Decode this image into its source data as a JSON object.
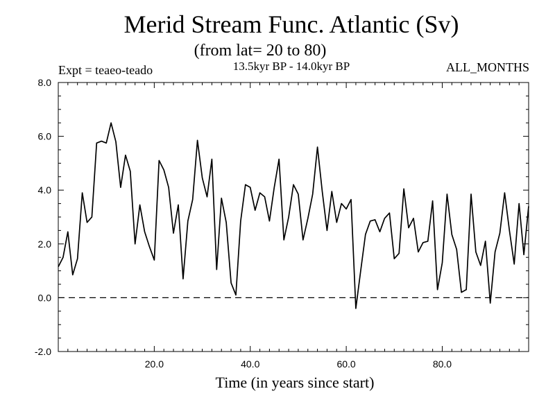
{
  "chart_data": {
    "type": "line",
    "title": "Merid Stream Func. Atlantic (Sv)",
    "subtitle": "(from lat= 20 to 80)",
    "annotations": {
      "left": "Expt = teaeo-teado",
      "center": "13.5kyr BP - 14.0kyr BP",
      "right": "ALL_MONTHS"
    },
    "xlabel": "Time (in years since start)",
    "ylabel": "",
    "xlim": [
      0,
      98
    ],
    "ylim": [
      -2.0,
      8.0
    ],
    "x_ticks": [
      20,
      40,
      60,
      80
    ],
    "x_tick_labels": [
      "20.0",
      "40.0",
      "60.0",
      "80.0"
    ],
    "y_ticks": [
      -2,
      0,
      2,
      4,
      6,
      8
    ],
    "y_tick_labels": [
      "-2.0",
      "0.0",
      "2.0",
      "4.0",
      "6.0",
      "8.0"
    ],
    "reference_line": {
      "y": 0.0,
      "style": "dashed"
    },
    "series": [
      {
        "name": "Merid Stream Func.",
        "x": [
          0,
          1,
          2,
          3,
          4,
          5,
          6,
          7,
          8,
          9,
          10,
          11,
          12,
          13,
          14,
          15,
          16,
          17,
          18,
          19,
          20,
          21,
          22,
          23,
          24,
          25,
          26,
          27,
          28,
          29,
          30,
          31,
          32,
          33,
          34,
          35,
          36,
          37,
          38,
          39,
          40,
          41,
          42,
          43,
          44,
          45,
          46,
          47,
          48,
          49,
          50,
          51,
          52,
          53,
          54,
          55,
          56,
          57,
          58,
          59,
          60,
          61,
          62,
          63,
          64,
          65,
          66,
          67,
          68,
          69,
          70,
          71,
          72,
          73,
          74,
          75,
          76,
          77,
          78,
          79,
          80,
          81,
          82,
          83,
          84,
          85,
          86,
          87,
          88,
          89,
          90,
          91,
          92,
          93,
          94,
          95,
          96,
          97,
          98
        ],
        "values": [
          1.15,
          1.5,
          2.45,
          0.85,
          1.45,
          3.9,
          2.8,
          3.0,
          5.75,
          5.82,
          5.75,
          6.5,
          5.8,
          4.1,
          5.3,
          4.7,
          2.0,
          3.45,
          2.45,
          1.9,
          1.4,
          5.1,
          4.75,
          4.1,
          2.4,
          3.45,
          0.7,
          2.85,
          3.65,
          5.85,
          4.45,
          3.75,
          5.15,
          1.05,
          3.7,
          2.8,
          0.55,
          0.1,
          2.85,
          4.2,
          4.1,
          3.25,
          3.9,
          3.75,
          2.85,
          4.1,
          5.15,
          2.15,
          3.0,
          4.2,
          3.85,
          2.15,
          2.95,
          3.85,
          5.6,
          3.95,
          2.5,
          3.95,
          2.8,
          3.5,
          3.3,
          3.65,
          -0.4,
          1.0,
          2.35,
          2.85,
          2.9,
          2.45,
          2.95,
          3.15,
          1.45,
          1.65,
          4.05,
          2.6,
          2.95,
          1.7,
          2.05,
          2.1,
          3.6,
          0.3,
          1.3,
          3.85,
          2.35,
          1.8,
          0.2,
          0.3,
          3.85,
          1.7,
          1.2,
          2.1,
          -0.2,
          1.7,
          2.4,
          3.9,
          2.5,
          1.25,
          3.5,
          1.6,
          3.4
        ]
      }
    ]
  }
}
